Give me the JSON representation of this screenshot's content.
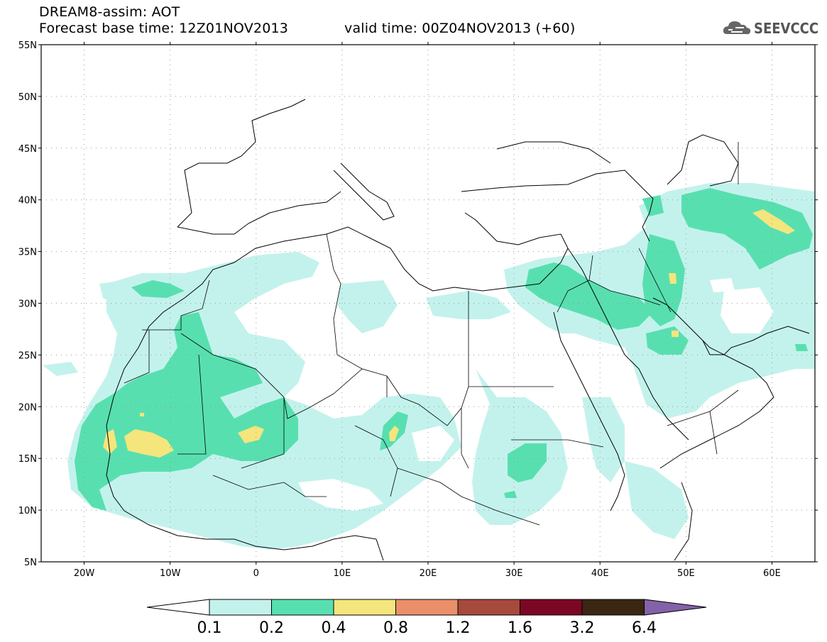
{
  "header": {
    "title": "DREAM8-assim: AOT",
    "base_time": "Forecast base time: 12Z01NOV2013",
    "valid_time": "valid time: 00Z04NOV2013 (+60)"
  },
  "logo": {
    "text": "SEEVCCC",
    "icon": "cloud-icon"
  },
  "map": {
    "projection": "lat-lon",
    "lon_range": [
      -25,
      65
    ],
    "lat_range": [
      5,
      55
    ],
    "lat_labels": [
      "55N",
      "50N",
      "45N",
      "40N",
      "35N",
      "30N",
      "25N",
      "20N",
      "15N",
      "10N",
      "5N"
    ],
    "lon_labels": [
      "20W",
      "10W",
      "0",
      "10E",
      "20E",
      "30E",
      "40E",
      "50E",
      "60E"
    ],
    "grid": "dotted"
  },
  "colorbar": {
    "labels": [
      "0.1",
      "0.2",
      "0.4",
      "0.8",
      "1.2",
      "1.6",
      "3.2",
      "6.4"
    ],
    "colors": [
      "#ffffff",
      "#c3f2ec",
      "#58dfb0",
      "#f4e57d",
      "#e9906a",
      "#a64a3d",
      "#7c0725",
      "#3b2614",
      "#8462a8"
    ]
  }
}
